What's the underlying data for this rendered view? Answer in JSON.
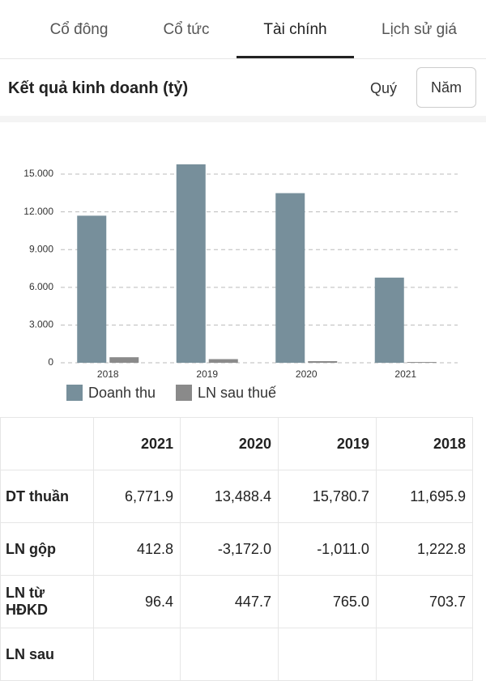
{
  "tabs": [
    "Cổ đông",
    "Cổ tức",
    "Tài chính",
    "Lịch sử giá"
  ],
  "header": {
    "title": "Kết quả kinh doanh (tỷ)",
    "options": [
      "Quý",
      "Năm"
    ]
  },
  "chart_data": {
    "type": "bar",
    "categories": [
      "2018",
      "2019",
      "2020",
      "2021"
    ],
    "series": [
      {
        "name": "Doanh thu",
        "color": "#778f9b",
        "values": [
          11695.9,
          15780.7,
          13488.4,
          6771.9
        ]
      },
      {
        "name": "LN sau thuế",
        "color": "#8a8a8a",
        "values": [
          440,
          290,
          130,
          60
        ]
      }
    ],
    "ylim": [
      0,
      17000
    ],
    "yticks": [
      0,
      {
        "value": 3000,
        "label": "3.000"
      },
      {
        "value": 6000,
        "label": "6.000"
      },
      {
        "value": 9000,
        "label": "9.000"
      },
      {
        "value": 12000,
        "label": "12.000"
      },
      {
        "value": 15000,
        "label": "15.000"
      }
    ],
    "grid": true,
    "legend": "bottom"
  },
  "table": {
    "columns": [
      "2021",
      "2020",
      "2019",
      "2018"
    ],
    "rows": [
      {
        "label": "DT thuần",
        "cells": [
          "6,771.9",
          "13,488.4",
          "15,780.7",
          "11,695.9"
        ]
      },
      {
        "label": "LN gộp",
        "cells": [
          "412.8",
          "-3,172.0",
          "-1,011.0",
          "1,222.8"
        ]
      },
      {
        "label": "LN từ HĐKD",
        "cells": [
          "96.4",
          "447.7",
          "765.0",
          "703.7"
        ]
      },
      {
        "label": "LN sau",
        "cells": []
      }
    ]
  }
}
